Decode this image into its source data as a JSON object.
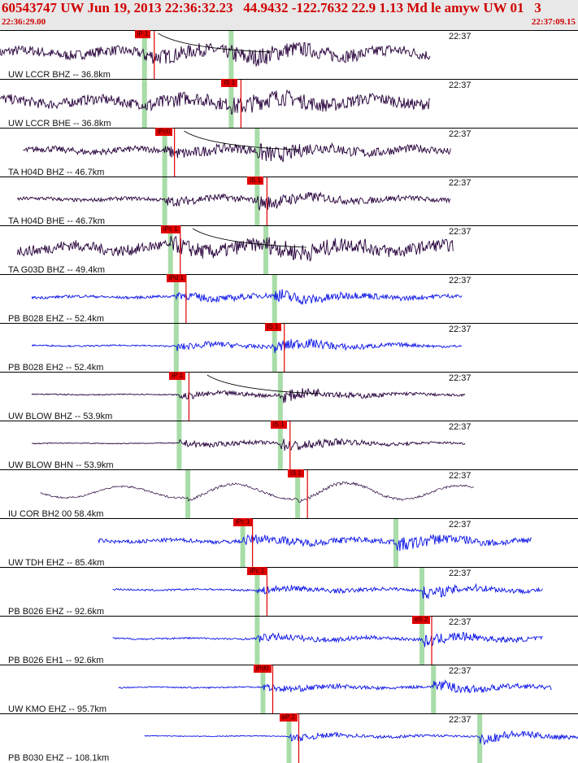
{
  "header": {
    "title": "60543747 UW Jun 19, 2013 22:36:32.23   44.9432 -122.7632 22.9 1.13 Md le amyw UW 01   3",
    "start_time": "22:36:29.00",
    "end_time": "22:37:09.15"
  },
  "colors": {
    "trace_dark": "#26003a",
    "trace_blue": "#0a12e6",
    "pick": "#e00000",
    "window": "#a8dca8",
    "header_text": "#d00000"
  },
  "traces": [
    {
      "label": "UW LCCR BHZ -- 36.8km",
      "time": "22:37",
      "pick": "iP 1",
      "style": "dark",
      "amp": 0.55,
      "start": 0.0,
      "end": 0.745,
      "p": 0.25,
      "s": 0.4,
      "pickAt": 0.25,
      "pickOff": 0.0,
      "curve": true
    },
    {
      "label": "UW LCCR BHE -- 36.8km",
      "time": "22:37",
      "pick": "iS 1",
      "style": "dark",
      "amp": 0.55,
      "start": 0.0,
      "end": 0.745,
      "p": 0.25,
      "s": 0.4,
      "pickAt": 0.4,
      "pickOff": 0.0,
      "curve": false
    },
    {
      "label": "TA H04D BHZ -- 46.7km",
      "time": "22:37",
      "pick": "iPc0",
      "style": "dark",
      "amp": 0.35,
      "start": 0.04,
      "end": 0.78,
      "p": 0.285,
      "s": 0.445,
      "pickAt": 0.285,
      "pickOff": 0.0,
      "curve": true
    },
    {
      "label": "TA H04D BHE -- 46.7km",
      "time": "22:37",
      "pick": "iS 1",
      "style": "dark",
      "amp": 0.2,
      "start": 0.03,
      "end": 0.78,
      "p": 0.285,
      "s": 0.445,
      "pickAt": 0.445,
      "pickOff": 0.0,
      "curve": false
    },
    {
      "label": "TA G03D BHZ -- 49.4km",
      "time": "22:37",
      "pick": "iPc 1",
      "style": "dark",
      "amp": 0.6,
      "start": 0.03,
      "end": 0.785,
      "p": 0.295,
      "s": 0.46,
      "pickAt": 0.295,
      "pickOff": 0.0,
      "curve": true
    },
    {
      "label": "PB B028 EHZ -- 52.4km",
      "time": "22:37",
      "pick": "iPd 1",
      "style": "blue",
      "amp": 0.15,
      "start": 0.055,
      "end": 0.8,
      "p": 0.305,
      "s": 0.475,
      "pickAt": 0.305,
      "pickOff": 0.0,
      "curve": false
    },
    {
      "label": "PB B028 EH2 -- 52.4km",
      "time": "22:37",
      "pick": "iS 1",
      "style": "blue",
      "amp": 0.08,
      "start": 0.055,
      "end": 0.8,
      "p": 0.305,
      "s": 0.475,
      "pickAt": 0.475,
      "pickOff": 0.0,
      "curve": false
    },
    {
      "label": "UW BLOW BHZ -- 53.9km",
      "time": "22:37",
      "pick": "iP 1",
      "style": "dark",
      "amp": 0.06,
      "start": 0.055,
      "end": 0.805,
      "p": 0.31,
      "s": 0.485,
      "pickAt": 0.31,
      "pickOff": 0.0,
      "curve": true
    },
    {
      "label": "UW BLOW BHN -- 53.9km",
      "time": "22:37",
      "pick": "iS 1",
      "style": "dark",
      "amp": 0.05,
      "start": 0.055,
      "end": 0.805,
      "p": 0.31,
      "s": 0.485,
      "pickAt": 0.485,
      "pickOff": 0.0,
      "curve": false
    },
    {
      "label": "IU COR BH2 00 58.4km",
      "time": "22:37",
      "pick": "iS 1",
      "style": "thin",
      "amp": 0.55,
      "start": 0.07,
      "end": 0.82,
      "p": 0.325,
      "s": 0.515,
      "pickAt": 0.515,
      "pickOff": 0.0,
      "curve": false
    },
    {
      "label": "UW TDH EHZ -- 85.4km",
      "time": "22:37",
      "pick": "iPc 1",
      "style": "blue",
      "amp": 0.22,
      "start": 0.17,
      "end": 0.92,
      "p": 0.42,
      "s": 0.685,
      "pickAt": 0.42,
      "pickOff": 0.0,
      "curve": false
    },
    {
      "label": "PB B026 EHZ -- 92.6km",
      "time": "22:37",
      "pick": "iPc 1",
      "style": "blue",
      "amp": 0.1,
      "start": 0.195,
      "end": 0.94,
      "p": 0.445,
      "s": 0.73,
      "pickAt": 0.445,
      "pickOff": 0.0,
      "curve": false
    },
    {
      "label": "PB B026 EH1 -- 92.6km",
      "time": "22:37",
      "pick": "eS 2",
      "style": "blue",
      "amp": 0.1,
      "start": 0.195,
      "end": 0.94,
      "p": 0.445,
      "s": 0.73,
      "pickAt": 0.73,
      "pickOff": 0.0,
      "curve": false
    },
    {
      "label": "UW KMO EHZ -- 95.7km",
      "time": "22:37",
      "pick": "iPd0",
      "style": "blue",
      "amp": 0.08,
      "start": 0.205,
      "end": 0.955,
      "p": 0.455,
      "s": 0.75,
      "pickAt": 0.455,
      "pickOff": 0.0,
      "curve": false
    },
    {
      "label": "PB B030 EHZ -- 108.1km",
      "time": "22:37",
      "pick": "eP 2",
      "style": "blue",
      "amp": 0.05,
      "start": 0.25,
      "end": 1.0,
      "p": 0.5,
      "s": 0.83,
      "pickAt": 0.5,
      "pickOff": 0.0,
      "curve": false
    }
  ]
}
